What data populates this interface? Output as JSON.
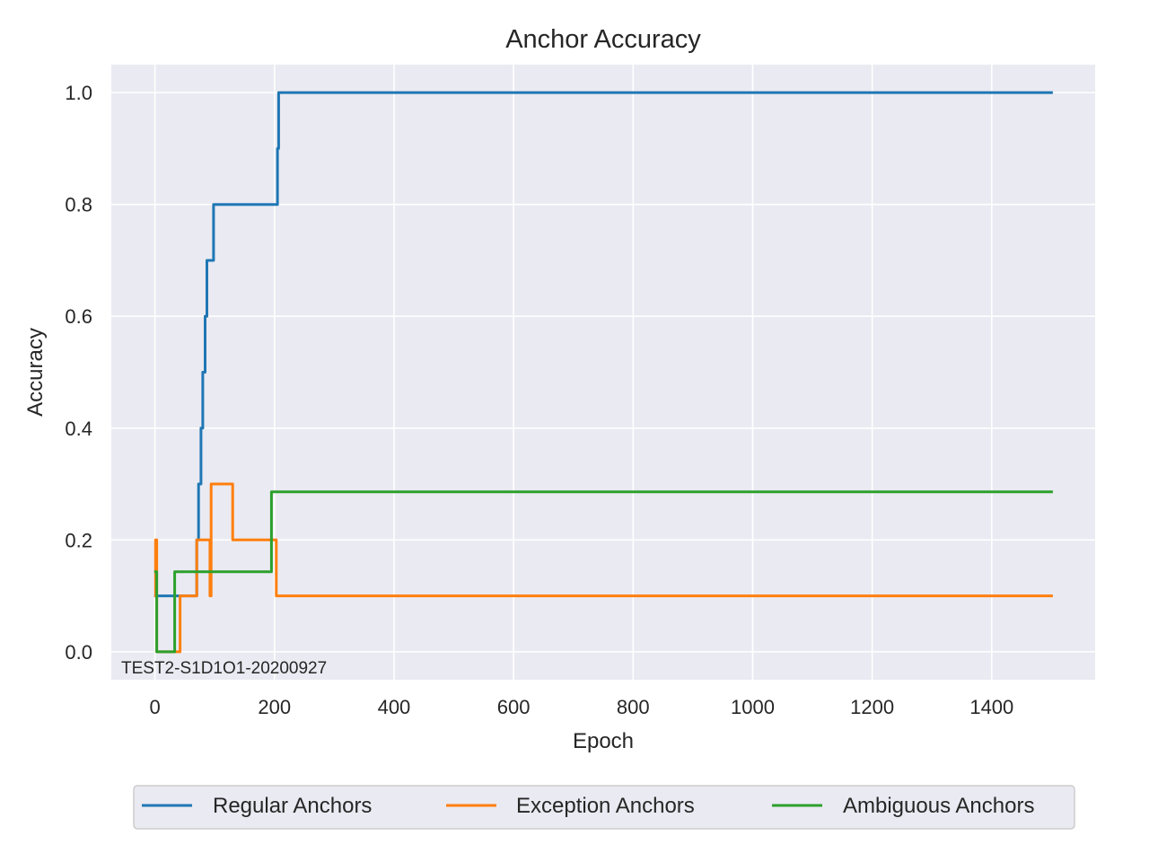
{
  "chart_data": {
    "type": "line",
    "title": "Anchor Accuracy",
    "xlabel": "Epoch",
    "ylabel": "Accuracy",
    "xlim": [
      -73,
      1573
    ],
    "ylim": [
      -0.05,
      1.05
    ],
    "xticks": [
      0,
      200,
      400,
      600,
      800,
      1000,
      1200,
      1400
    ],
    "yticks": [
      0.0,
      0.2,
      0.4,
      0.6,
      0.8,
      1.0
    ],
    "grid": true,
    "legend_position": "bottom-center",
    "annotation": "TEST2-S1D1O1-20200927",
    "series": [
      {
        "name": "Regular Anchors",
        "color": "#1f77b4",
        "x": [
          1,
          70,
          70,
          73,
          73,
          77,
          77,
          80,
          80,
          84,
          84,
          87,
          87,
          90,
          90,
          98,
          98,
          205,
          205,
          207,
          207,
          1500
        ],
        "y": [
          0.1,
          0.1,
          0.2,
          0.2,
          0.3,
          0.3,
          0.4,
          0.4,
          0.5,
          0.5,
          0.6,
          0.6,
          0.7,
          0.7,
          0.7,
          0.7,
          0.8,
          0.8,
          0.9,
          0.9,
          1.0,
          1.0
        ]
      },
      {
        "name": "Exception Anchors",
        "color": "#ff7f0e",
        "x": [
          1,
          1,
          3,
          3,
          30,
          30,
          42,
          42,
          70,
          70,
          92,
          92,
          94,
          94,
          130,
          130,
          203,
          203,
          1500
        ],
        "y": [
          0.1,
          0.2,
          0.2,
          0.0,
          0.0,
          0.0,
          0.0,
          0.1,
          0.1,
          0.2,
          0.2,
          0.1,
          0.1,
          0.3,
          0.3,
          0.2,
          0.2,
          0.1,
          0.1
        ]
      },
      {
        "name": "Ambiguous Anchors",
        "color": "#2ca02c",
        "x": [
          1,
          1,
          3,
          3,
          33,
          33,
          195,
          195,
          1500
        ],
        "y": [
          0.143,
          0.143,
          0.143,
          0.0,
          0.0,
          0.143,
          0.143,
          0.286,
          0.286
        ]
      }
    ]
  }
}
